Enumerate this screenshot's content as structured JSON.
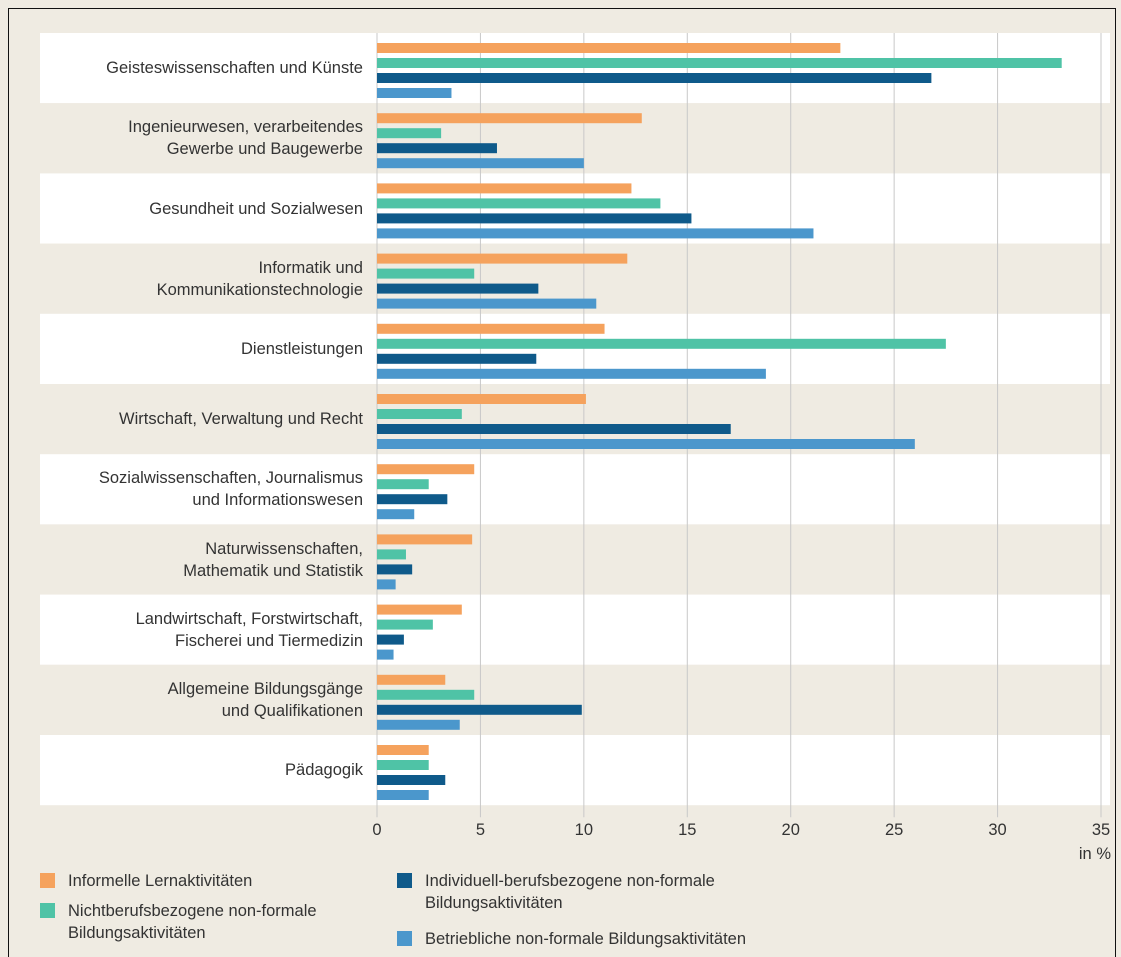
{
  "chart_data": {
    "type": "bar",
    "orientation": "horizontal",
    "categories": [
      "Geisteswissenschaften und Künste",
      "Ingenieurwesen, verarbeitendes\nGewerbe und Baugewerbe",
      "Gesundheit und Sozialwesen",
      "Informatik und\nKommunikationstechnologie",
      "Dienstleistungen",
      "Wirtschaft, Verwaltung und Recht",
      "Sozialwissenschaften, Journalismus\nund Informationswesen",
      "Naturwissenschaften,\nMathematik und Statistik",
      "Landwirtschaft, Forstwirtschaft,\nFischerei und Tiermedizin",
      "Allgemeine Bildungsgänge\nund Qualifikationen",
      "Pädagogik"
    ],
    "series": [
      {
        "name": "Informelle Lernaktivitäten",
        "color": "#f5a25d",
        "values": [
          22.4,
          12.8,
          12.3,
          12.1,
          11.0,
          10.1,
          4.7,
          4.6,
          4.1,
          3.3,
          2.5
        ]
      },
      {
        "name": "Nichtberufsbezogene non-formale\nBildungsaktivitäten",
        "color": "#4fc3a6",
        "values": [
          33.1,
          3.1,
          13.7,
          4.7,
          27.5,
          4.1,
          2.5,
          1.4,
          2.7,
          4.7,
          2.5
        ]
      },
      {
        "name": "Individuell-berufsbezogene non-formale\nBildungsaktivitäten",
        "color": "#0f5a8a",
        "values": [
          26.8,
          5.8,
          15.2,
          7.8,
          7.7,
          17.1,
          3.4,
          1.7,
          1.3,
          9.9,
          3.3
        ]
      },
      {
        "name": "Betriebliche non-formale Bildungsaktivitäten",
        "color": "#4b97cc",
        "values": [
          3.6,
          10.0,
          21.1,
          10.6,
          18.8,
          26.0,
          1.8,
          0.9,
          0.8,
          4.0,
          2.5
        ]
      }
    ],
    "x_label": "in %",
    "xlim": [
      0,
      35
    ],
    "xticks": [
      0,
      5,
      10,
      15,
      20,
      25,
      30,
      35
    ],
    "grid": true
  }
}
